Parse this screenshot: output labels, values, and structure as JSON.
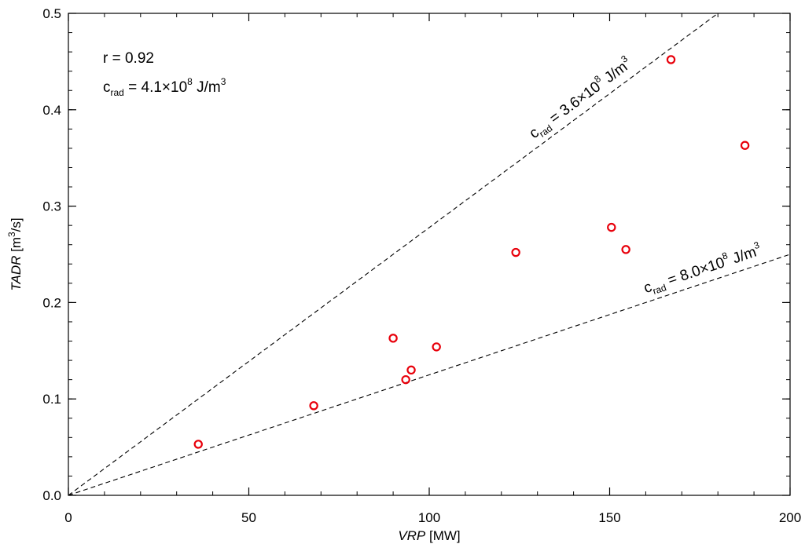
{
  "chart_data": {
    "type": "scatter",
    "title": "",
    "xlabel": "VRP [MW]",
    "xlabel_parts": {
      "italic": "VRP",
      "rest": " [MW]"
    },
    "ylabel": "TADR [m3/s]",
    "ylabel_parts": {
      "italic": "TADR",
      "pre": " [m",
      "sup": "3",
      "post": "/s]"
    },
    "xlim": [
      0,
      200
    ],
    "ylim": [
      0,
      0.5
    ],
    "xticks": [
      0,
      50,
      100,
      150,
      200
    ],
    "yticks": [
      0.0,
      0.1,
      0.2,
      0.3,
      0.4,
      0.5
    ],
    "xtick_labels": [
      "0",
      "50",
      "100",
      "150",
      "200"
    ],
    "ytick_labels": [
      "0.0",
      "0.1",
      "0.2",
      "0.3",
      "0.4",
      "0.5"
    ],
    "xminor_step": 10,
    "yminor_step": 0.02,
    "grid": false,
    "marker_color": "#e8000b",
    "series": [
      {
        "marker": "open-circle",
        "x": [
          36,
          68,
          90,
          93.5,
          95,
          102,
          124,
          150.5,
          154.5,
          167,
          187.5
        ],
        "y": [
          0.053,
          0.093,
          0.163,
          0.12,
          0.13,
          0.154,
          0.252,
          0.278,
          0.255,
          0.452,
          0.363
        ]
      }
    ],
    "reference_lines": [
      {
        "slope": 0.0027778,
        "x_end": 180,
        "label_base": "c",
        "label_sub": "rad",
        "label_mid": " = 3.6×10",
        "label_sup": "8",
        "label_unit": " J/m",
        "label_unit_sup": "3"
      },
      {
        "slope": 0.00125,
        "x_end": 200,
        "label_base": "c",
        "label_sub": "rad",
        "label_mid": " = 8.0×10",
        "label_sup": "8",
        "label_unit": " J/m",
        "label_unit_sup": "3"
      }
    ],
    "annotations": {
      "r_text": "r = 0.92",
      "crad_base": "c",
      "crad_sub": "rad",
      "crad_mid": " = 4.1×10",
      "crad_sup": "8",
      "crad_unit": " J/m",
      "crad_unit_sup": "3"
    }
  }
}
